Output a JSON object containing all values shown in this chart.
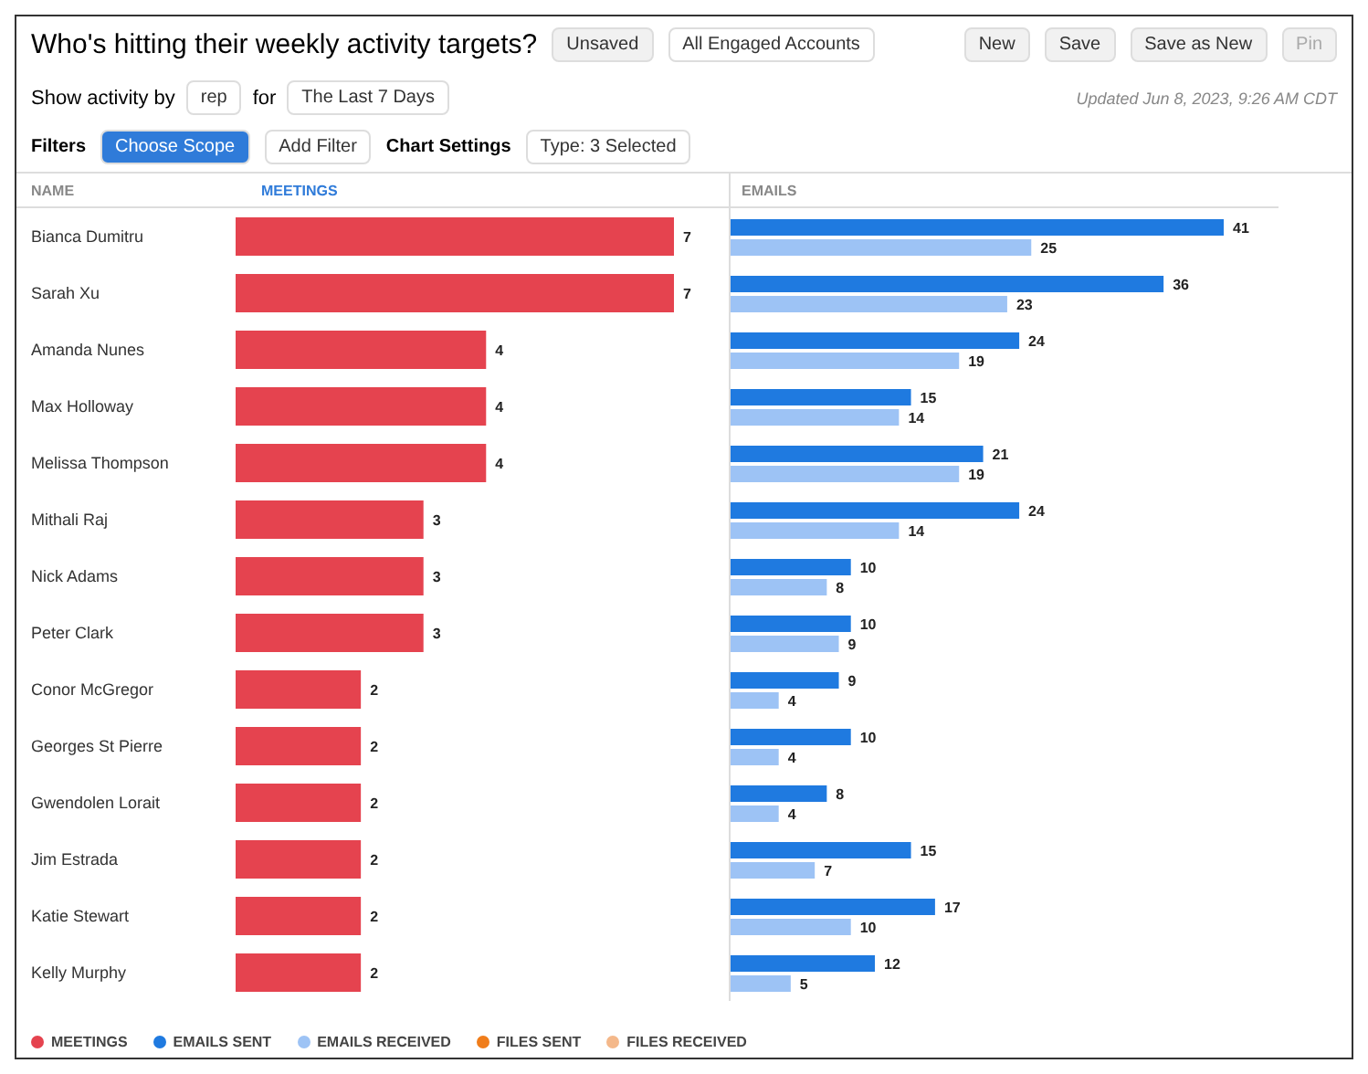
{
  "chart_data": [
    {
      "type": "bar",
      "orientation": "horizontal",
      "title": "Who's hitting their weekly activity targets?",
      "ylabel": "NAME",
      "xlabel": "MEETINGS",
      "annotations": [
        "Unsaved",
        "All Engaged Accounts",
        "New",
        "Save",
        "Save as New",
        "Pin",
        "Show activity by",
        "rep",
        "for",
        "The Last 7 Days",
        "Updated Jun 8, 2023, 9:26 AM CDT",
        "Filters",
        "Choose Scope",
        "Add Filter",
        "Chart Settings",
        "Type: 3 Selected"
      ],
      "categories": [
        "Bianca Dumitru",
        "Sarah Xu",
        "Amanda Nunes",
        "Max Holloway",
        "Melissa Thompson",
        "Mithali Raj",
        "Nick Adams",
        "Peter Clark",
        "Conor McGregor",
        "Georges St Pierre",
        "Gwendolen Lorait",
        "Jim Estrada",
        "Katie Stewart",
        "Kelly Murphy"
      ],
      "series": [
        {
          "name": "MEETINGS",
          "color": "#e5434f",
          "values": [
            7,
            7,
            4,
            4,
            4,
            3,
            3,
            3,
            2,
            2,
            2,
            2,
            2,
            2
          ]
        }
      ],
      "data_labels": true,
      "legend": "bottom"
    },
    {
      "type": "bar",
      "orientation": "horizontal",
      "xlabel": "EMAILS",
      "tick_labels": false,
      "categories": [
        null,
        null,
        null,
        null,
        null,
        null,
        null,
        null,
        null,
        null,
        null,
        null,
        null,
        null
      ],
      "series": [
        {
          "name": "EMAILS SENT",
          "color": "#1f7ae0",
          "values": [
            41,
            36,
            24,
            15,
            21,
            24,
            10,
            10,
            9,
            10,
            8,
            15,
            17,
            12
          ]
        },
        {
          "name": "EMAILS RECEIVED",
          "color": "#9dc3f5",
          "values": [
            25,
            23,
            19,
            14,
            19,
            14,
            8,
            9,
            4,
            4,
            4,
            7,
            10,
            5
          ]
        },
        {
          "name": "FILES SENT",
          "color": "#f07d1a",
          "values": [
            null,
            null,
            null,
            null,
            null,
            null,
            null,
            null,
            null,
            null,
            null,
            null,
            null,
            null
          ]
        },
        {
          "name": "FILES RECEIVED",
          "color": "#f4b88a",
          "values": [
            null,
            null,
            null,
            null,
            null,
            null,
            null,
            null,
            null,
            null,
            null,
            null,
            null,
            null
          ]
        }
      ],
      "data_labels": true,
      "legend": "bottom"
    }
  ]
}
